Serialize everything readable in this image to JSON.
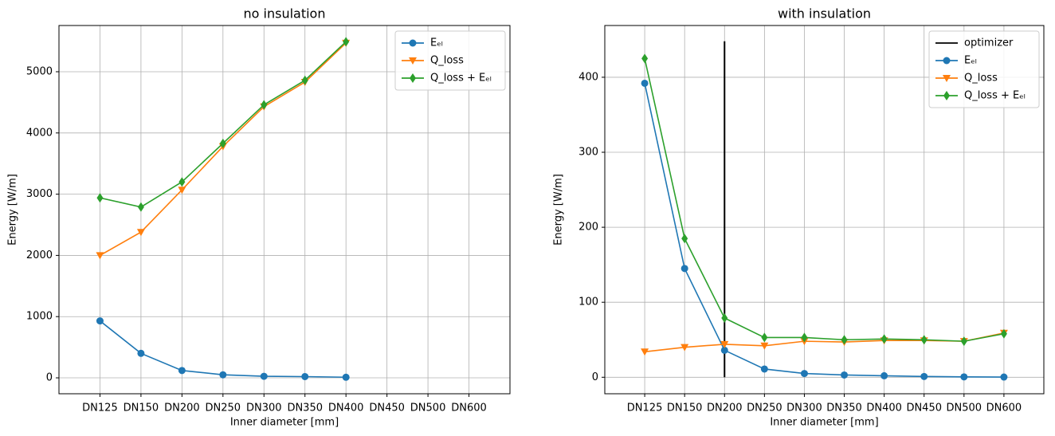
{
  "chart_data": [
    {
      "type": "line",
      "title": "no insulation",
      "xlabel": "Inner diameter [mm]",
      "ylabel": "Energy [W/m]",
      "categories": [
        "DN125",
        "DN150",
        "DN200",
        "DN250",
        "DN300",
        "DN350",
        "DN400",
        "DN450",
        "DN500",
        "DN600"
      ],
      "series": [
        {
          "name": "Eₑₗ",
          "color": "#1f77b4",
          "marker": "o",
          "values": [
            930,
            400,
            120,
            50,
            25,
            20,
            10,
            null,
            null,
            null
          ]
        },
        {
          "name": "Q_loss",
          "color": "#ff7f0e",
          "marker": "v",
          "values": [
            2000,
            2380,
            3070,
            3780,
            4430,
            4830,
            5470,
            null,
            null,
            null
          ]
        },
        {
          "name": "Q_loss + Eₑₗ",
          "color": "#2ca02c",
          "marker": "d",
          "values": [
            2940,
            2790,
            3200,
            3830,
            4460,
            4860,
            5490,
            null,
            null,
            null
          ]
        }
      ],
      "ylim": [
        -260,
        5755
      ],
      "yticks": [
        0,
        1000,
        2000,
        3000,
        4000,
        5000
      ],
      "grid": true,
      "legend": "upper right"
    },
    {
      "type": "line",
      "title": "with insulation",
      "xlabel": "Inner diameter [mm]",
      "ylabel": "Energy [W/m]",
      "categories": [
        "DN125",
        "DN150",
        "DN200",
        "DN250",
        "DN300",
        "DN350",
        "DN400",
        "DN450",
        "DN500",
        "DN600"
      ],
      "vlines": [
        {
          "name": "optimizer",
          "color": "#000000",
          "x": "DN200",
          "ymin": 0,
          "ymax": 448
        }
      ],
      "series": [
        {
          "name": "Eₑₗ",
          "color": "#1f77b4",
          "marker": "o",
          "values": [
            392,
            145,
            36,
            11,
            5,
            3,
            2,
            1,
            0.5,
            0.3
          ]
        },
        {
          "name": "Q_loss",
          "color": "#ff7f0e",
          "marker": "v",
          "values": [
            34,
            40,
            44,
            42,
            48,
            47,
            49,
            49,
            48,
            59
          ]
        },
        {
          "name": "Q_loss + Eₑₗ",
          "color": "#2ca02c",
          "marker": "d",
          "values": [
            425,
            185,
            79,
            53,
            53,
            50,
            51,
            50,
            48,
            58
          ]
        }
      ],
      "ylim": [
        -22,
        469
      ],
      "yticks": [
        0,
        100,
        200,
        300,
        400
      ],
      "grid": true,
      "legend": "upper right"
    }
  ]
}
